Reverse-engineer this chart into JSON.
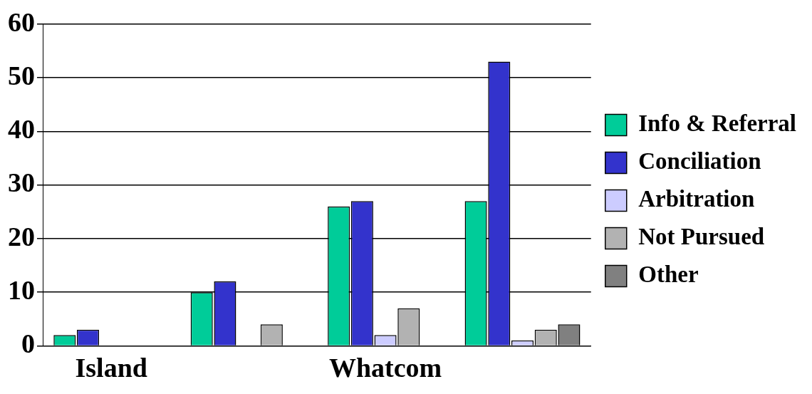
{
  "chart_data": {
    "type": "bar",
    "categories": [
      "Island",
      null,
      "Whatcom",
      null
    ],
    "series": [
      {
        "name": "Info & Referral",
        "color": "#00cc99",
        "values": [
          2,
          10,
          26,
          27
        ]
      },
      {
        "name": "Conciliation",
        "color": "#3333cc",
        "values": [
          3,
          12,
          27,
          53
        ]
      },
      {
        "name": "Arbitration",
        "color": "#ccccff",
        "values": [
          0,
          0,
          2,
          1
        ]
      },
      {
        "name": "Not Pursued",
        "color": "#b2b2b2",
        "values": [
          0,
          4,
          7,
          3
        ]
      },
      {
        "name": "Other",
        "color": "#808080",
        "values": [
          0,
          0,
          0,
          4
        ]
      }
    ],
    "ylim": [
      0,
      60
    ],
    "yticks": [
      0,
      10,
      20,
      30,
      40,
      50,
      60
    ],
    "grid": "y",
    "legend": "right"
  }
}
